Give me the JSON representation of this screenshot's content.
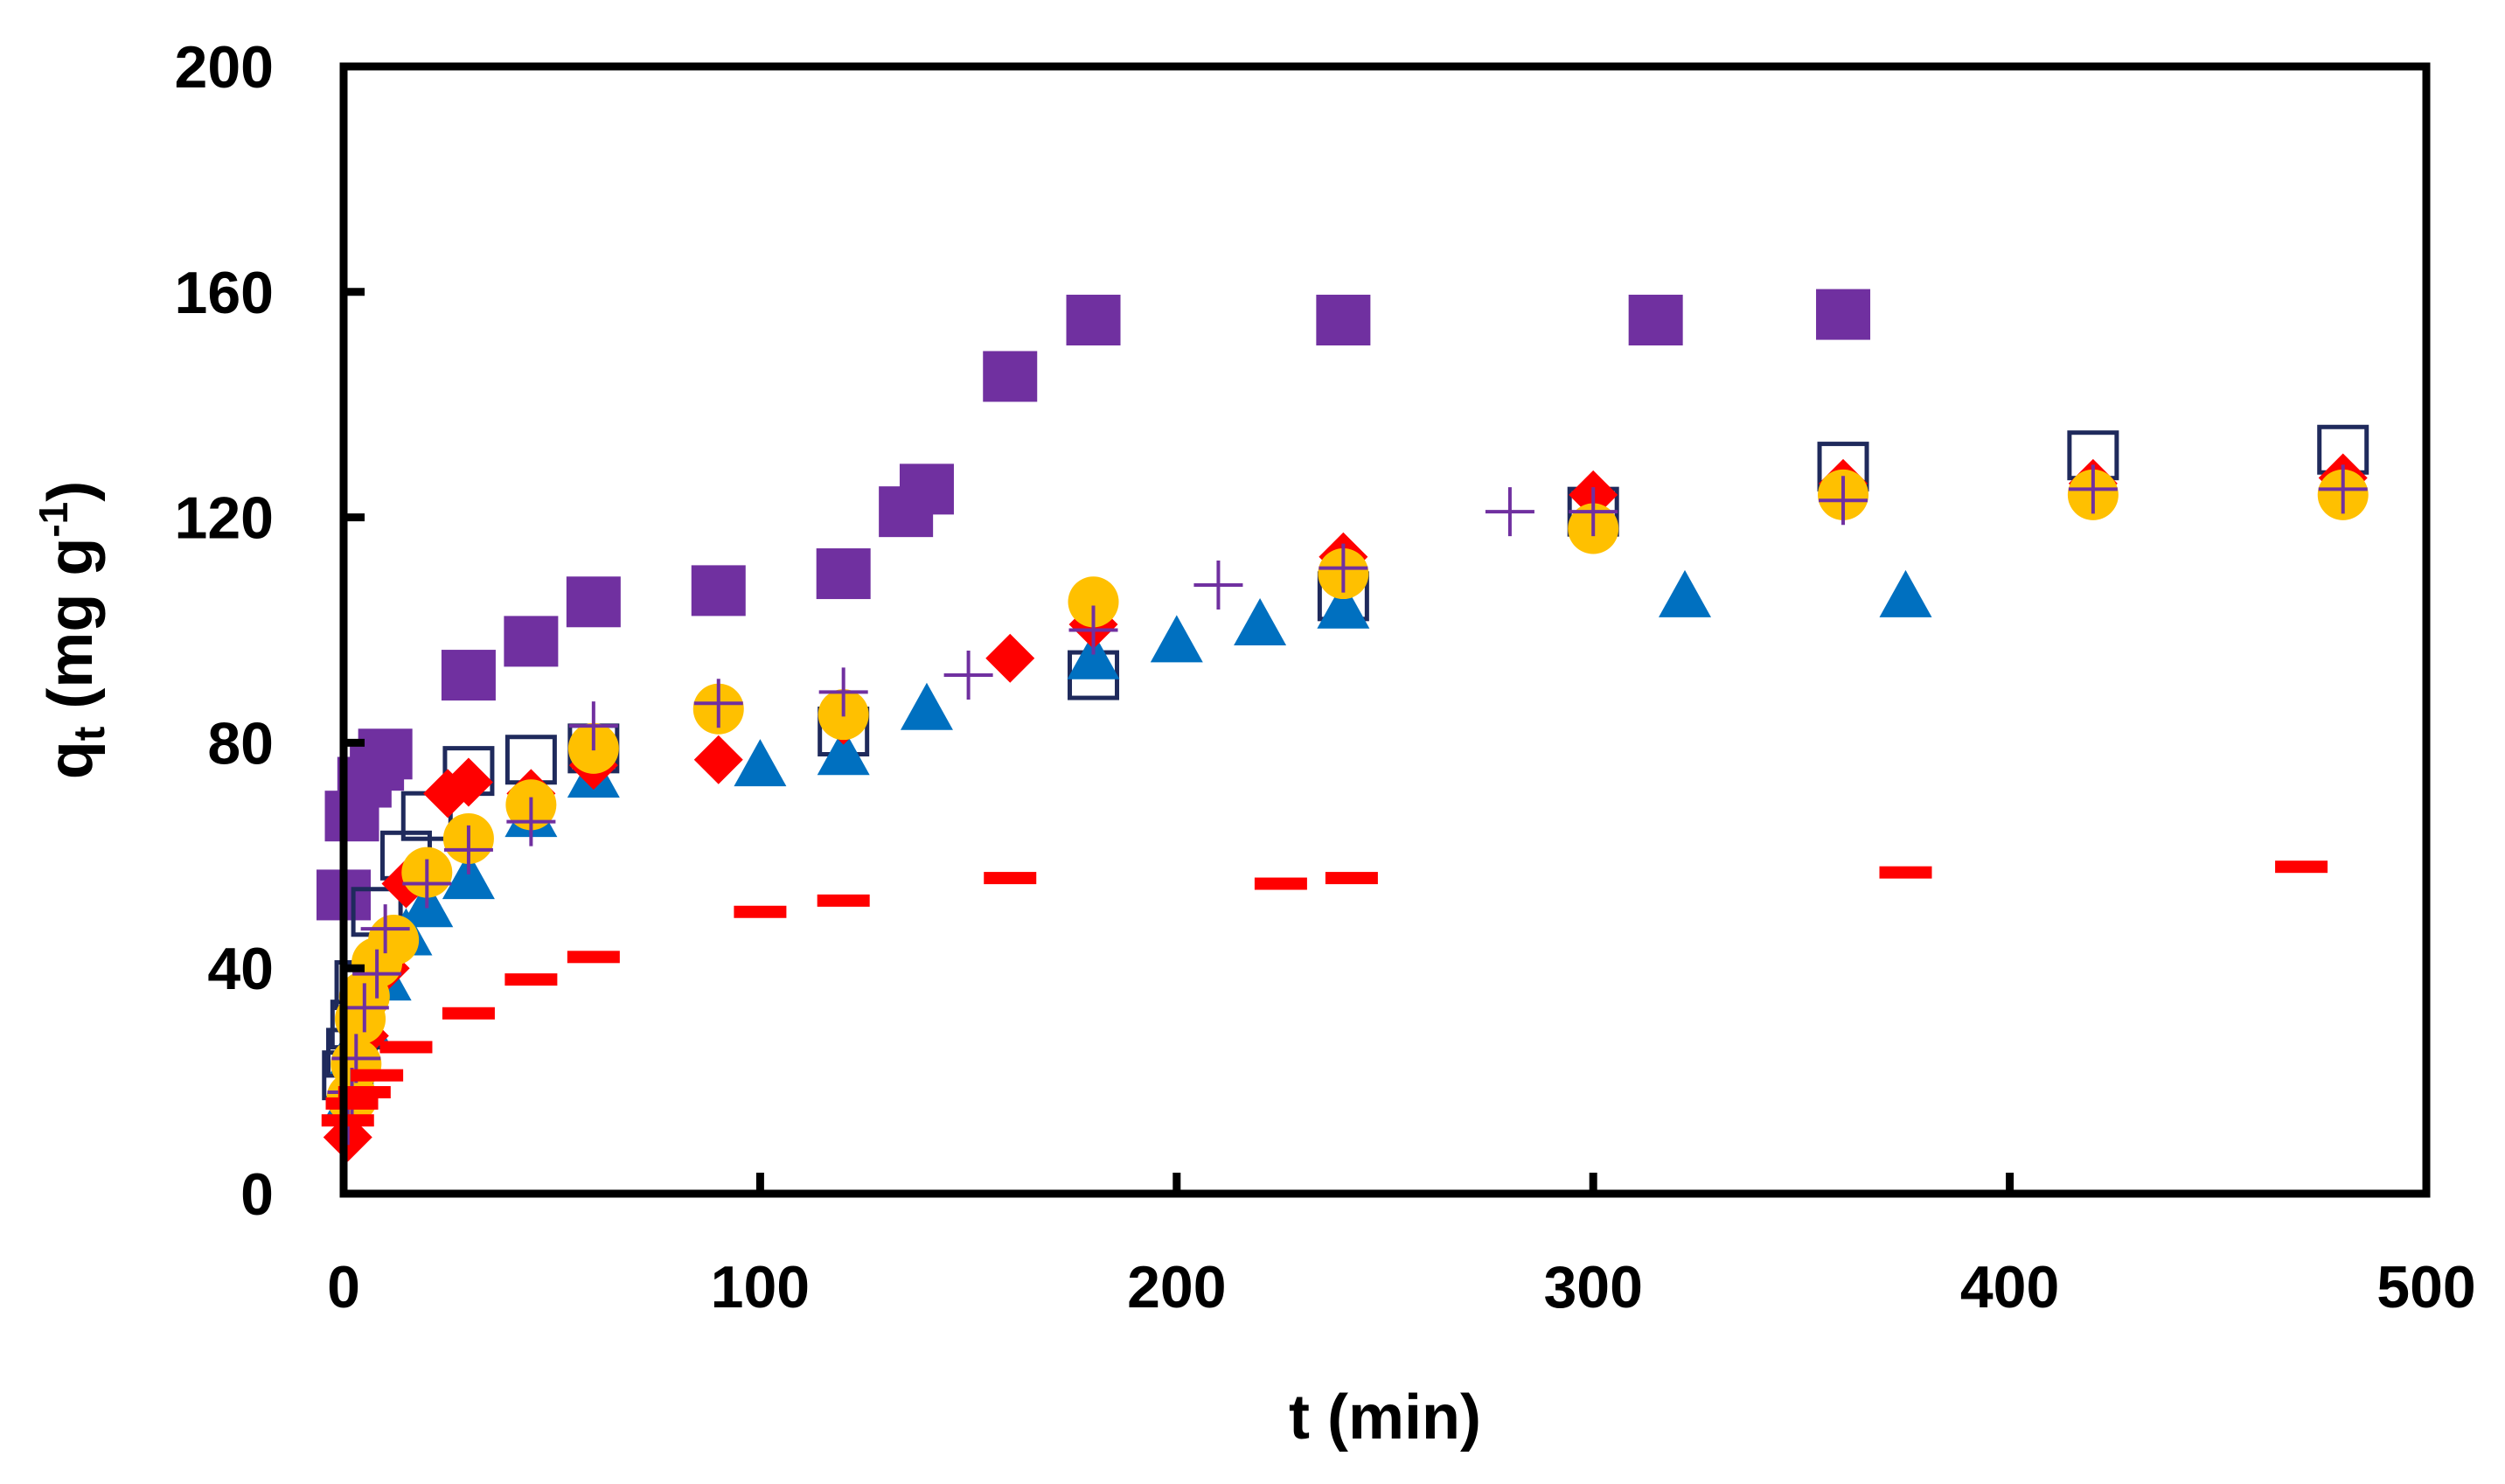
{
  "chart_data": {
    "type": "scatter",
    "title": "",
    "xlabel": "t (min)",
    "ylabel": {
      "main": "q",
      "sub": "t",
      "unit_pre": " (mg g",
      "unit_sup": "-1",
      "unit_post": ")"
    },
    "xlim": [
      0,
      500
    ],
    "ylim": [
      0,
      200
    ],
    "xticks": [
      0,
      100,
      200,
      300,
      400,
      500
    ],
    "yticks": [
      0,
      40,
      80,
      120,
      160,
      200
    ],
    "xtick_labels": [
      "0",
      "100",
      "200",
      "300",
      "400",
      "500"
    ],
    "ytick_labels": [
      "0",
      "40",
      "80",
      "120",
      "160",
      "200"
    ],
    "grid": false,
    "legend": "none",
    "series": [
      {
        "marker": "filled-square",
        "color": "#7030A0",
        "points": [
          [
            0,
            53
          ],
          [
            2,
            67
          ],
          [
            5,
            73
          ],
          [
            8,
            76
          ],
          [
            10,
            78
          ],
          [
            30,
            92
          ],
          [
            45,
            98
          ],
          [
            60,
            105
          ],
          [
            90,
            107
          ],
          [
            120,
            110
          ],
          [
            135,
            121
          ],
          [
            140,
            125
          ],
          [
            160,
            145
          ],
          [
            180,
            155
          ],
          [
            240,
            155
          ],
          [
            315,
            155
          ],
          [
            360,
            156
          ]
        ]
      },
      {
        "marker": "open-square",
        "color": "#1F2A5C",
        "points": [
          [
            1,
            21
          ],
          [
            2,
            25
          ],
          [
            3,
            30
          ],
          [
            4,
            37
          ],
          [
            8,
            50
          ],
          [
            15,
            60
          ],
          [
            20,
            67
          ],
          [
            30,
            75
          ],
          [
            45,
            77
          ],
          [
            60,
            79
          ],
          [
            120,
            82
          ],
          [
            180,
            92
          ],
          [
            240,
            106
          ],
          [
            300,
            121
          ],
          [
            360,
            129
          ],
          [
            420,
            131
          ],
          [
            480,
            132
          ]
        ]
      },
      {
        "marker": "filled-triangle",
        "color": "#0070C0",
        "points": [
          [
            1,
            16
          ],
          [
            2,
            20
          ],
          [
            3,
            25
          ],
          [
            5,
            30
          ],
          [
            10,
            38
          ],
          [
            15,
            46
          ],
          [
            20,
            51
          ],
          [
            30,
            56
          ],
          [
            45,
            67
          ],
          [
            60,
            74
          ],
          [
            100,
            76
          ],
          [
            120,
            78
          ],
          [
            140,
            86
          ],
          [
            180,
            95
          ],
          [
            200,
            98
          ],
          [
            220,
            101
          ],
          [
            240,
            104
          ],
          [
            322,
            106
          ],
          [
            375,
            106
          ]
        ]
      },
      {
        "marker": "filled-diamond",
        "color": "#FF0000",
        "points": [
          [
            1,
            10
          ],
          [
            2,
            17
          ],
          [
            3,
            23
          ],
          [
            5,
            28
          ],
          [
            10,
            40
          ],
          [
            15,
            55
          ],
          [
            25,
            71
          ],
          [
            30,
            73
          ],
          [
            45,
            71
          ],
          [
            60,
            76
          ],
          [
            90,
            77
          ],
          [
            120,
            84
          ],
          [
            160,
            95
          ],
          [
            180,
            101
          ],
          [
            240,
            113
          ],
          [
            300,
            124
          ],
          [
            360,
            126
          ],
          [
            420,
            126
          ],
          [
            480,
            127
          ]
        ]
      },
      {
        "marker": "filled-circle",
        "color": "#FFC000",
        "points": [
          [
            2,
            17
          ],
          [
            3,
            23
          ],
          [
            4,
            31
          ],
          [
            5,
            35
          ],
          [
            8,
            41
          ],
          [
            12,
            45
          ],
          [
            20,
            57
          ],
          [
            30,
            63
          ],
          [
            45,
            69
          ],
          [
            60,
            79
          ],
          [
            90,
            86
          ],
          [
            120,
            85
          ],
          [
            180,
            105
          ],
          [
            240,
            110
          ],
          [
            300,
            118
          ],
          [
            360,
            124
          ],
          [
            420,
            124
          ],
          [
            480,
            124
          ]
        ]
      },
      {
        "marker": "plus",
        "color": "#7030A0",
        "points": [
          [
            1,
            13
          ],
          [
            2,
            18
          ],
          [
            3,
            24
          ],
          [
            5,
            33
          ],
          [
            8,
            39
          ],
          [
            10,
            47
          ],
          [
            20,
            55
          ],
          [
            30,
            61
          ],
          [
            45,
            66
          ],
          [
            60,
            83
          ],
          [
            90,
            87
          ],
          [
            120,
            89
          ],
          [
            150,
            92
          ],
          [
            180,
            100
          ],
          [
            210,
            108
          ],
          [
            240,
            111
          ],
          [
            280,
            121
          ],
          [
            300,
            121
          ],
          [
            360,
            123
          ],
          [
            420,
            125
          ],
          [
            480,
            125
          ]
        ]
      },
      {
        "marker": "dash",
        "color": "#FF0000",
        "points": [
          [
            1,
            13
          ],
          [
            2,
            16
          ],
          [
            5,
            18
          ],
          [
            8,
            21
          ],
          [
            15,
            26
          ],
          [
            30,
            32
          ],
          [
            45,
            38
          ],
          [
            60,
            42
          ],
          [
            100,
            50
          ],
          [
            120,
            52
          ],
          [
            160,
            56
          ],
          [
            225,
            55
          ],
          [
            242,
            56
          ],
          [
            375,
            57
          ],
          [
            470,
            58
          ]
        ]
      }
    ]
  }
}
